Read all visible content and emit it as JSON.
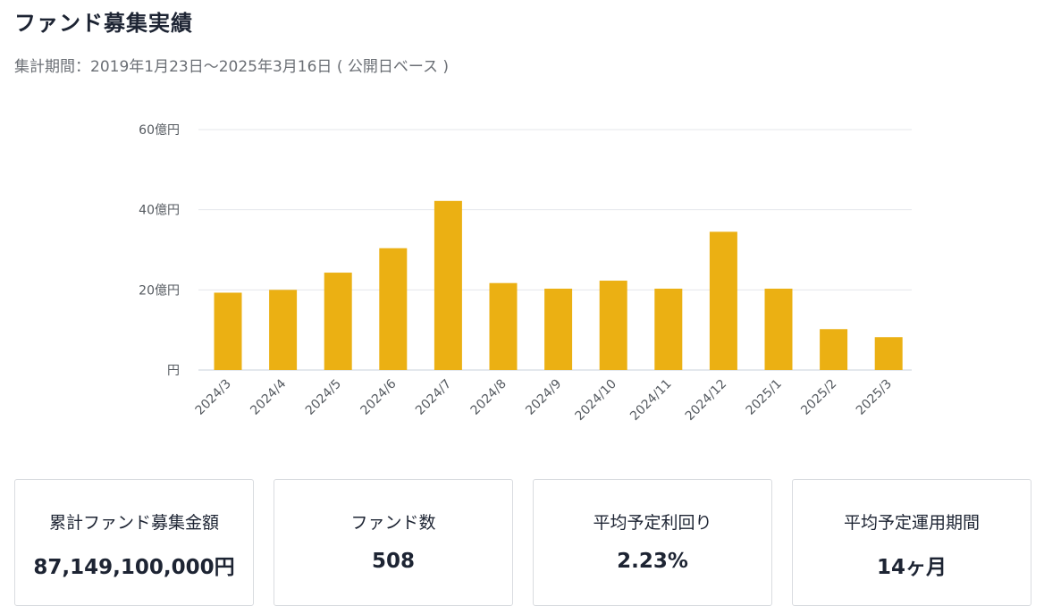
{
  "header": {
    "title": "ファンド募集実績",
    "period": "集計期間：2019年1月23日〜2025年3月16日 ( 公開日ベース )"
  },
  "chart_data": {
    "type": "bar",
    "title": "",
    "xlabel": "",
    "ylabel": "",
    "categories": [
      "2024/3",
      "2024/4",
      "2024/5",
      "2024/6",
      "2024/7",
      "2024/8",
      "2024/9",
      "2024/10",
      "2024/11",
      "2024/12",
      "2025/1",
      "2025/2",
      "2025/3"
    ],
    "values": [
      19.3,
      20.0,
      24.3,
      30.4,
      42.2,
      21.7,
      20.3,
      22.3,
      20.3,
      34.5,
      20.3,
      10.2,
      8.2
    ],
    "ylim": [
      0,
      60
    ],
    "yticks": [
      0,
      20,
      40,
      60
    ],
    "ytick_labels": [
      "円",
      "20億円",
      "40億円",
      "60億円"
    ],
    "grid": true,
    "bar_color": "#ebb013"
  },
  "stats": [
    {
      "label": "累計ファンド募集金額",
      "value": "87,149,100,000円"
    },
    {
      "label": "ファンド数",
      "value": "508"
    },
    {
      "label": "平均予定利回り",
      "value": "2.23%"
    },
    {
      "label": "平均予定運用期間",
      "value": "14ヶ月"
    }
  ]
}
